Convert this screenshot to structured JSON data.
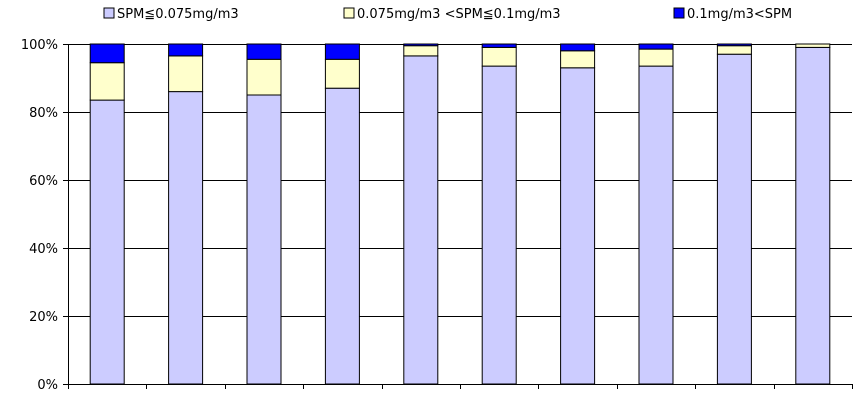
{
  "chart_data": {
    "type": "bar",
    "stacked": true,
    "normalized": true,
    "title": "",
    "xlabel": "",
    "ylabel": "",
    "categories": [
      "",
      "",
      "",
      "",
      "",
      "",
      "",
      "",
      "",
      ""
    ],
    "ylim": [
      0,
      100
    ],
    "y_ticks": [
      "0%",
      "20%",
      "40%",
      "60%",
      "80%",
      "100%"
    ],
    "y_tick_values": [
      0,
      20,
      40,
      60,
      80,
      100
    ],
    "grid": true,
    "legend_position": "top",
    "series": [
      {
        "name": "SPM≦0.075mg/m3",
        "color": "#ccccff",
        "values": [
          83.5,
          86.0,
          85.0,
          87.0,
          96.5,
          93.5,
          93.0,
          93.5,
          97.0,
          99.0
        ]
      },
      {
        "name": "0.075mg/m3 <SPM≦0.1mg/m3",
        "color": "#ffffcc",
        "values": [
          11.0,
          10.5,
          10.5,
          8.5,
          3.0,
          5.5,
          5.0,
          5.0,
          2.5,
          1.0
        ]
      },
      {
        "name": "0.1mg/m3<SPM",
        "color": "#0000ff",
        "values": [
          5.5,
          3.5,
          4.5,
          4.5,
          0.5,
          1.0,
          2.0,
          1.5,
          0.5,
          0.0
        ]
      }
    ]
  }
}
